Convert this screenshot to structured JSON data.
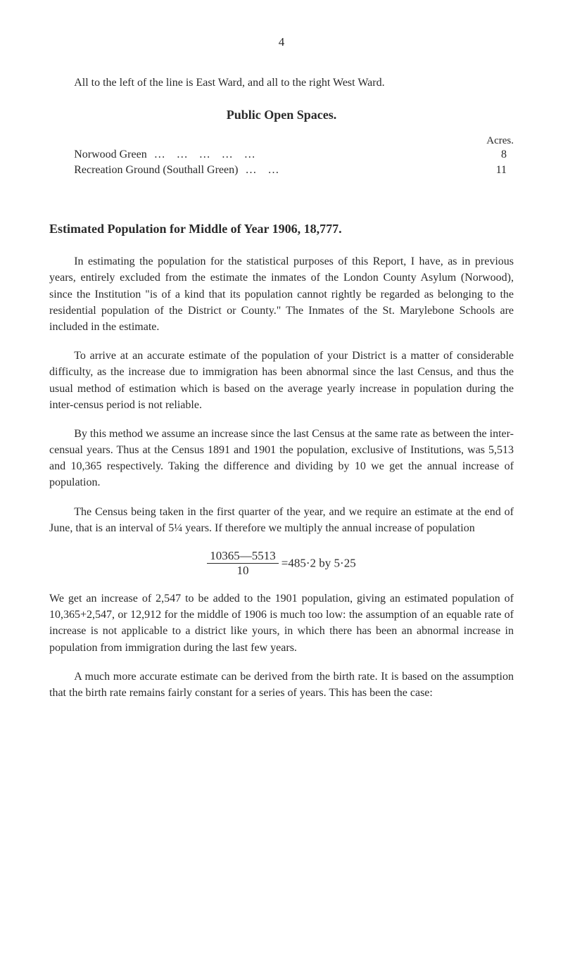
{
  "page_number": "4",
  "intro_paragraph": "All to the left of the line is East Ward, and all to the right West Ward.",
  "public_open_spaces": {
    "heading": "Public Open Spaces.",
    "acres_label": "Acres.",
    "rows": [
      {
        "label": "Norwood Green",
        "dots": "…      …      …      …      …",
        "value": "8"
      },
      {
        "label": "Recreation Ground (Southall Green)",
        "dots": "…      …",
        "value": "11"
      }
    ]
  },
  "estimated_population_heading": "Estimated Population for Middle of Year 1906, 18,777.",
  "paragraphs": {
    "p1": "In estimating the population for the statistical purposes of this Report, I have, as in previous years, entirely excluded from the estimate the inmates of the London County Asylum (Norwood), since the Institution \"is of a kind that its population cannot rightly be regarded as belonging to the residential population of the District or County.\" The Inmates of the St. Marylebone Schools are included in the estimate.",
    "p2": "To arrive at an accurate estimate of the population of your District is a matter of considerable difficulty, as the increase due to immigration has been abnormal since the last Census, and thus the usual method of estimation which is based on the average yearly increase in population during the inter-census period is not reliable.",
    "p3": "By this method we assume an increase since the last Census at the same rate as between the inter-censual years. Thus at the Census 1891 and 1901 the population, exclusive of Institutions, was 5,513 and 10,365 respectively. Taking the difference and dividing by 10 we get the annual increase of population.",
    "p4": "The Census being taken in the first quarter of the year, and we require an estimate at the end of June, that is an interval of 5¼ years. If therefore we multiply the annual increase of population",
    "p5": "We get an increase of 2,547 to be added to the 1901 population, giving an estimated population of 10,365+2,547, or 12,912 for the middle of 1906 is much too low: the assumption of an equable rate of increase is not applicable to a district like yours, in which there has been an abnormal increase in population from immigration during the last few years.",
    "p6": "A much more accurate estimate can be derived from the birth rate. It is based on the assumption that the birth rate remains fairly constant for a series of years. This has been the case:"
  },
  "formula": {
    "numerator": "10365—5513",
    "denominator": "10",
    "rest": "=485·2 by 5·25"
  }
}
